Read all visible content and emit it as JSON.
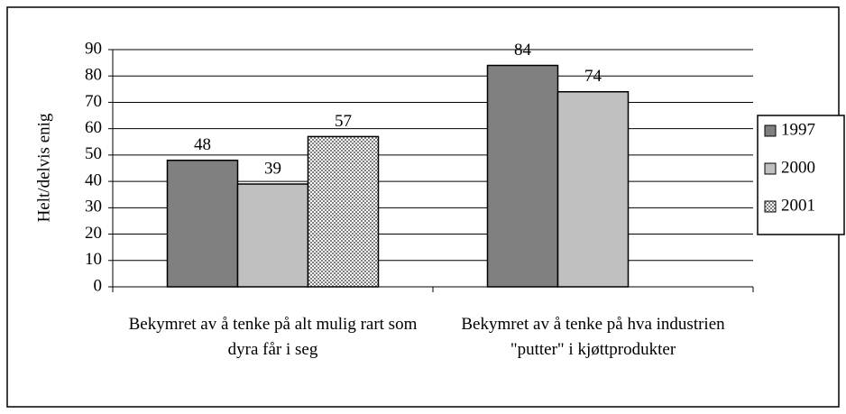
{
  "chart_data": {
    "type": "bar",
    "y_label": "Helt/delvis enig",
    "categories": [
      "Bekymret av å tenke på alt mulig rart som dyra får i seg",
      "Bekymret av å tenke på hva industrien \"putter\" i kjøttprodukter"
    ],
    "series": [
      {
        "name": "1997",
        "color": "#808080",
        "values": [
          48,
          84
        ]
      },
      {
        "name": "2000",
        "color": "#c0c0c0",
        "values": [
          39,
          74
        ]
      },
      {
        "name": "2001",
        "color": "#808080",
        "pattern": "checker",
        "values": [
          57,
          null
        ]
      }
    ],
    "ylim": [
      0,
      90
    ],
    "yticks": [
      0,
      10,
      20,
      30,
      40,
      50,
      60,
      70,
      80,
      90
    ],
    "grid": true,
    "legend": "right"
  }
}
